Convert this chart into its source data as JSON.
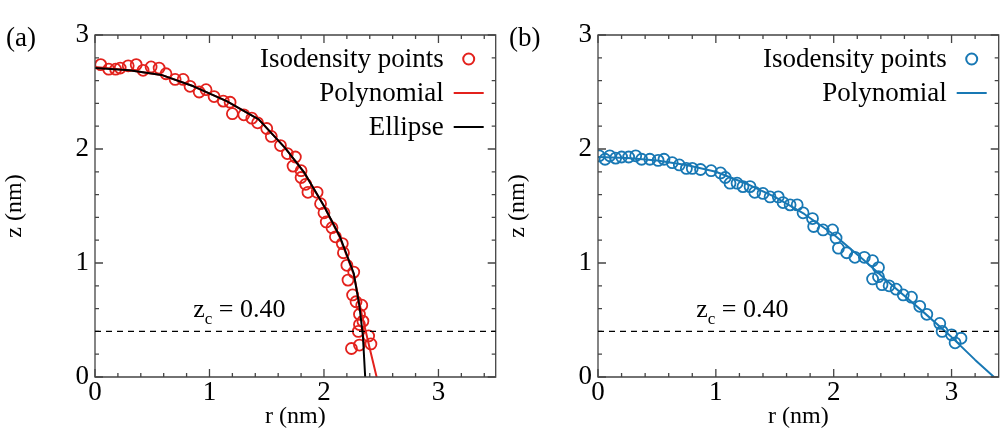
{
  "chart_data": [
    {
      "type": "scatter",
      "xlabel": "r (nm)",
      "ylabel": "z (nm)",
      "xlim": [
        0,
        3.5
      ],
      "ylim": [
        0,
        3
      ],
      "xticks": [
        0,
        {
          "value": 0.2,
          "label": null
        },
        {
          "value": 0.4,
          "label": null
        },
        {
          "value": 0.6,
          "label": null
        },
        {
          "value": 0.8,
          "label": null
        },
        1,
        {
          "value": 1.2,
          "label": null
        },
        {
          "value": 1.4,
          "label": null
        },
        {
          "value": 1.6,
          "label": null
        },
        {
          "value": 1.8,
          "label": null
        },
        2,
        {
          "value": 2.2,
          "label": null
        },
        {
          "value": 2.4,
          "label": null
        },
        {
          "value": 2.6,
          "label": null
        },
        {
          "value": 2.8,
          "label": null
        },
        3,
        {
          "value": 3.2,
          "label": null
        },
        {
          "value": 3.4,
          "label": null
        }
      ],
      "yticks": [
        0,
        {
          "value": 0.2,
          "label": null
        },
        {
          "value": 0.4,
          "label": null
        },
        {
          "value": 0.6,
          "label": null
        },
        {
          "value": 0.8,
          "label": null
        },
        1,
        {
          "value": 1.2,
          "label": null
        },
        {
          "value": 1.4,
          "label": null
        },
        {
          "value": 1.6,
          "label": null
        },
        {
          "value": 1.8,
          "label": null
        },
        2,
        {
          "value": 2.2,
          "label": null
        },
        {
          "value": 2.4,
          "label": null
        },
        {
          "value": 2.6,
          "label": null
        },
        {
          "value": 2.8,
          "label": null
        },
        3
      ],
      "legend": "top right",
      "annotations": [
        "(a)"
      ],
      "ref_lines": [
        {
          "axis": "y",
          "value": 0.4,
          "label": "z$_{c}$ = 0.40",
          "line_style": "dashed",
          "color": "#000000"
        }
      ],
      "series": [
        {
          "name": "Isodensity points",
          "type": "scatter",
          "marker": "circle",
          "color": "#e3211c",
          "x": [
            0.05,
            0.12,
            0.18,
            0.22,
            0.29,
            0.36,
            0.42,
            0.49,
            0.56,
            0.62,
            0.7,
            0.77,
            0.83,
            0.91,
            0.97,
            1.04,
            1.12,
            1.18,
            1.2,
            1.3,
            1.37,
            1.42,
            1.5,
            1.54,
            1.62,
            1.68,
            1.75,
            1.73,
            1.8,
            1.8,
            1.84,
            1.86,
            1.94,
            1.97,
            2.0,
            2.02,
            2.07,
            2.1,
            2.16,
            2.17,
            2.2,
            2.26,
            2.21,
            2.25,
            2.28,
            2.33,
            2.31,
            2.34,
            2.31,
            2.3,
            2.39,
            2.31,
            2.24,
            2.41
          ],
          "values": [
            2.74,
            2.7,
            2.7,
            2.71,
            2.73,
            2.74,
            2.69,
            2.72,
            2.71,
            2.66,
            2.61,
            2.61,
            2.55,
            2.5,
            2.52,
            2.46,
            2.42,
            2.41,
            2.31,
            2.3,
            2.27,
            2.23,
            2.18,
            2.11,
            2.03,
            1.96,
            1.93,
            1.85,
            1.81,
            1.75,
            1.69,
            1.62,
            1.62,
            1.52,
            1.44,
            1.36,
            1.31,
            1.23,
            1.17,
            1.09,
            0.98,
            0.92,
            0.85,
            0.72,
            0.66,
            0.63,
            0.55,
            0.49,
            0.46,
            0.4,
            0.36,
            0.28,
            0.25,
            0.29
          ]
        },
        {
          "name": "Polynomial",
          "type": "line",
          "marker": "none",
          "color": "#e3211c",
          "x": [
            0,
            0.3,
            0.58,
            0.86,
            1.15,
            1.43,
            1.66,
            1.83,
            2.0,
            2.14,
            2.26,
            2.33,
            2.4,
            2.46
          ],
          "values": [
            2.72,
            2.69,
            2.65,
            2.55,
            2.42,
            2.26,
            2.01,
            1.79,
            1.5,
            1.22,
            0.9,
            0.55,
            0.25,
            0
          ]
        },
        {
          "name": "Ellipse",
          "type": "line",
          "marker": "none",
          "color": "#000000",
          "x": [
            0,
            0.3,
            0.58,
            0.86,
            1.15,
            1.43,
            1.66,
            1.83,
            2.0,
            2.14,
            2.26,
            2.31,
            2.34,
            2.36
          ],
          "values": [
            2.71,
            2.69,
            2.65,
            2.55,
            2.42,
            2.26,
            2.01,
            1.79,
            1.5,
            1.23,
            0.91,
            0.62,
            0.36,
            0
          ]
        }
      ]
    },
    {
      "type": "scatter",
      "xlabel": "r (nm)",
      "ylabel": "z (nm)",
      "xlim": [
        0,
        3.4
      ],
      "ylim": [
        0,
        3
      ],
      "xticks": [
        0,
        {
          "value": 0.2,
          "label": null
        },
        {
          "value": 0.4,
          "label": null
        },
        {
          "value": 0.6,
          "label": null
        },
        {
          "value": 0.8,
          "label": null
        },
        1,
        {
          "value": 1.2,
          "label": null
        },
        {
          "value": 1.4,
          "label": null
        },
        {
          "value": 1.6,
          "label": null
        },
        {
          "value": 1.8,
          "label": null
        },
        2,
        {
          "value": 2.2,
          "label": null
        },
        {
          "value": 2.4,
          "label": null
        },
        {
          "value": 2.6,
          "label": null
        },
        {
          "value": 2.8,
          "label": null
        },
        3,
        {
          "value": 3.2,
          "label": null
        }
      ],
      "yticks": [
        0,
        {
          "value": 0.2,
          "label": null
        },
        {
          "value": 0.4,
          "label": null
        },
        {
          "value": 0.6,
          "label": null
        },
        {
          "value": 0.8,
          "label": null
        },
        1,
        {
          "value": 1.2,
          "label": null
        },
        {
          "value": 1.4,
          "label": null
        },
        {
          "value": 1.6,
          "label": null
        },
        {
          "value": 1.8,
          "label": null
        },
        2,
        {
          "value": 2.2,
          "label": null
        },
        {
          "value": 2.4,
          "label": null
        },
        {
          "value": 2.6,
          "label": null
        },
        {
          "value": 2.8,
          "label": null
        },
        3
      ],
      "legend": "top right",
      "annotations": [
        "(b)"
      ],
      "ref_lines": [
        {
          "axis": "y",
          "value": 0.4,
          "label": "z$_{c}$ = 0.40",
          "line_style": "dashed",
          "color": "#000000"
        }
      ],
      "series": [
        {
          "name": "Isodensity points",
          "type": "scatter",
          "marker": "circle",
          "color": "#1878b4",
          "x": [
            0.01,
            0.06,
            0.1,
            0.15,
            0.2,
            0.26,
            0.32,
            0.37,
            0.44,
            0.51,
            0.56,
            0.63,
            0.69,
            0.75,
            0.8,
            0.87,
            0.96,
            1.04,
            1.08,
            1.12,
            1.18,
            1.23,
            1.29,
            1.33,
            1.4,
            1.46,
            1.53,
            1.57,
            1.63,
            1.69,
            1.74,
            1.82,
            1.83,
            1.91,
            1.99,
            2.02,
            2.04,
            2.11,
            2.18,
            2.26,
            2.33,
            2.38,
            2.33,
            2.38,
            2.41,
            2.47,
            2.53,
            2.59,
            2.66,
            2.73,
            2.79,
            2.9,
            2.92,
            3.0,
            3.03,
            3.08
          ],
          "values": [
            1.94,
            1.91,
            1.94,
            1.92,
            1.93,
            1.93,
            1.94,
            1.91,
            1.91,
            1.9,
            1.91,
            1.88,
            1.86,
            1.83,
            1.83,
            1.82,
            1.81,
            1.79,
            1.75,
            1.7,
            1.7,
            1.67,
            1.67,
            1.62,
            1.61,
            1.58,
            1.58,
            1.53,
            1.51,
            1.51,
            1.44,
            1.39,
            1.32,
            1.29,
            1.29,
            1.22,
            1.13,
            1.09,
            1.05,
            1.05,
            1.02,
            0.96,
            0.86,
            0.88,
            0.81,
            0.8,
            0.77,
            0.72,
            0.7,
            0.62,
            0.55,
            0.47,
            0.4,
            0.37,
            0.3,
            0.34
          ]
        },
        {
          "name": "Polynomial",
          "type": "line",
          "marker": "none",
          "color": "#1878b4",
          "x": [
            0,
            0.25,
            0.5,
            0.75,
            1.0,
            1.25,
            1.5,
            1.75,
            2.0,
            2.25,
            2.5,
            2.75,
            3.0,
            3.2,
            3.36
          ],
          "values": [
            1.93,
            1.92,
            1.9,
            1.86,
            1.8,
            1.7,
            1.58,
            1.43,
            1.25,
            1.03,
            0.8,
            0.58,
            0.35,
            0.15,
            0
          ]
        }
      ]
    }
  ]
}
